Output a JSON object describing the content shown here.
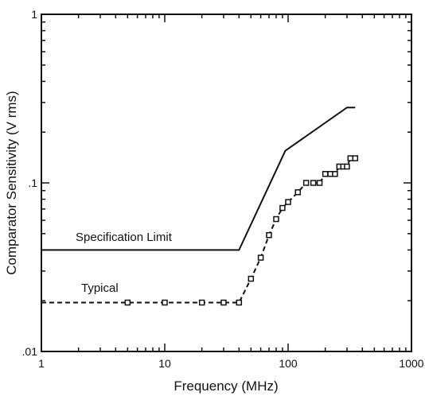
{
  "chart_data": {
    "type": "line",
    "title": "",
    "xlabel": "Frequency (MHz)",
    "ylabel": "Comparator Sensitivity (V rms)",
    "x_scale": "log",
    "y_scale": "log",
    "xlim": [
      1,
      1000
    ],
    "ylim": [
      0.01,
      1
    ],
    "x_ticks": [
      {
        "value": 1,
        "label": "1"
      },
      {
        "value": 10,
        "label": "10"
      },
      {
        "value": 100,
        "label": "100"
      },
      {
        "value": 1000,
        "label": "1000"
      }
    ],
    "y_ticks": [
      {
        "value": 0.01,
        "label": ".01"
      },
      {
        "value": 0.1,
        "label": ".1"
      },
      {
        "value": 1,
        "label": "1"
      }
    ],
    "grid": false,
    "legend": "none",
    "annotations": [
      "Specification Limit",
      "Typical"
    ],
    "series": [
      {
        "name": "Specification Limit",
        "style": "solid",
        "color": "#111111",
        "x": [
          1,
          40,
          95,
          300,
          350
        ],
        "y": [
          0.04,
          0.04,
          0.155,
          0.28,
          0.28
        ]
      },
      {
        "name": "Typical",
        "style": "dashed",
        "markers": "square",
        "color": "#111111",
        "x": [
          1,
          5,
          10,
          20,
          30,
          40,
          50,
          60,
          70,
          80,
          90,
          100,
          120,
          140,
          160,
          180,
          200,
          220,
          240,
          260,
          280,
          300,
          320,
          350
        ],
        "y": [
          0.0195,
          0.0195,
          0.0195,
          0.0195,
          0.0195,
          0.0195,
          0.027,
          0.036,
          0.049,
          0.061,
          0.071,
          0.077,
          0.088,
          0.1,
          0.1,
          0.1,
          0.113,
          0.113,
          0.113,
          0.125,
          0.125,
          0.125,
          0.14,
          0.14
        ]
      }
    ]
  }
}
